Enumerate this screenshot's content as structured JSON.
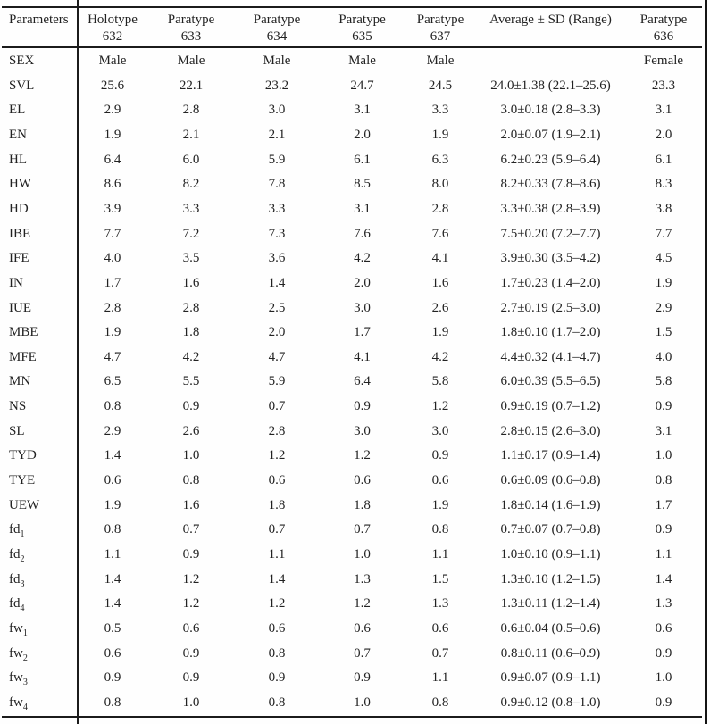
{
  "table": {
    "header": {
      "parameters_label": "Parameters",
      "columns": [
        {
          "line1": "Holotype",
          "line2": "632"
        },
        {
          "line1": "Paratype",
          "line2": "633"
        },
        {
          "line1": "Paratype",
          "line2": "634"
        },
        {
          "line1": "Paratype",
          "line2": "635"
        },
        {
          "line1": "Paratype",
          "line2": "637"
        },
        {
          "line1": "Average ± SD (Range)",
          "line2": ""
        },
        {
          "line1": "Paratype",
          "line2": "636"
        }
      ]
    },
    "rows": [
      {
        "param": "SEX",
        "sub": "",
        "values": [
          "Male",
          "Male",
          "Male",
          "Male",
          "Male",
          "",
          "Female"
        ]
      },
      {
        "param": "SVL",
        "sub": "",
        "values": [
          "25.6",
          "22.1",
          "23.2",
          "24.7",
          "24.5",
          "24.0±1.38 (22.1–25.6)",
          "23.3"
        ]
      },
      {
        "param": "EL",
        "sub": "",
        "values": [
          "2.9",
          "2.8",
          "3.0",
          "3.1",
          "3.3",
          "3.0±0.18 (2.8–3.3)",
          "3.1"
        ]
      },
      {
        "param": "EN",
        "sub": "",
        "values": [
          "1.9",
          "2.1",
          "2.1",
          "2.0",
          "1.9",
          "2.0±0.07 (1.9–2.1)",
          "2.0"
        ]
      },
      {
        "param": "HL",
        "sub": "",
        "values": [
          "6.4",
          "6.0",
          "5.9",
          "6.1",
          "6.3",
          "6.2±0.23 (5.9–6.4)",
          "6.1"
        ]
      },
      {
        "param": "HW",
        "sub": "",
        "values": [
          "8.6",
          "8.2",
          "7.8",
          "8.5",
          "8.0",
          "8.2±0.33 (7.8–8.6)",
          "8.3"
        ]
      },
      {
        "param": "HD",
        "sub": "",
        "values": [
          "3.9",
          "3.3",
          "3.3",
          "3.1",
          "2.8",
          "3.3±0.38 (2.8–3.9)",
          "3.8"
        ]
      },
      {
        "param": "IBE",
        "sub": "",
        "values": [
          "7.7",
          "7.2",
          "7.3",
          "7.6",
          "7.6",
          "7.5±0.20 (7.2–7.7)",
          "7.7"
        ]
      },
      {
        "param": "IFE",
        "sub": "",
        "values": [
          "4.0",
          "3.5",
          "3.6",
          "4.2",
          "4.1",
          "3.9±0.30 (3.5–4.2)",
          "4.5"
        ]
      },
      {
        "param": "IN",
        "sub": "",
        "values": [
          "1.7",
          "1.6",
          "1.4",
          "2.0",
          "1.6",
          "1.7±0.23 (1.4–2.0)",
          "1.9"
        ]
      },
      {
        "param": "IUE",
        "sub": "",
        "values": [
          "2.8",
          "2.8",
          "2.5",
          "3.0",
          "2.6",
          "2.7±0.19 (2.5–3.0)",
          "2.9"
        ]
      },
      {
        "param": "MBE",
        "sub": "",
        "values": [
          "1.9",
          "1.8",
          "2.0",
          "1.7",
          "1.9",
          "1.8±0.10 (1.7–2.0)",
          "1.5"
        ]
      },
      {
        "param": "MFE",
        "sub": "",
        "values": [
          "4.7",
          "4.2",
          "4.7",
          "4.1",
          "4.2",
          "4.4±0.32 (4.1–4.7)",
          "4.0"
        ]
      },
      {
        "param": "MN",
        "sub": "",
        "values": [
          "6.5",
          "5.5",
          "5.9",
          "6.4",
          "5.8",
          "6.0±0.39 (5.5–6.5)",
          "5.8"
        ]
      },
      {
        "param": "NS",
        "sub": "",
        "values": [
          "0.8",
          "0.9",
          "0.7",
          "0.9",
          "1.2",
          "0.9±0.19 (0.7–1.2)",
          "0.9"
        ]
      },
      {
        "param": "SL",
        "sub": "",
        "values": [
          "2.9",
          "2.6",
          "2.8",
          "3.0",
          "3.0",
          "2.8±0.15 (2.6–3.0)",
          "3.1"
        ]
      },
      {
        "param": "TYD",
        "sub": "",
        "values": [
          "1.4",
          "1.0",
          "1.2",
          "1.2",
          "0.9",
          "1.1±0.17 (0.9–1.4)",
          "1.0"
        ]
      },
      {
        "param": "TYE",
        "sub": "",
        "values": [
          "0.6",
          "0.8",
          "0.6",
          "0.6",
          "0.6",
          "0.6±0.09 (0.6–0.8)",
          "0.8"
        ]
      },
      {
        "param": "UEW",
        "sub": "",
        "values": [
          "1.9",
          "1.6",
          "1.8",
          "1.8",
          "1.9",
          "1.8±0.14 (1.6–1.9)",
          "1.7"
        ]
      },
      {
        "param": "fd",
        "sub": "1",
        "values": [
          "0.8",
          "0.7",
          "0.7",
          "0.7",
          "0.8",
          "0.7±0.07 (0.7–0.8)",
          "0.9"
        ]
      },
      {
        "param": "fd",
        "sub": "2",
        "values": [
          "1.1",
          "0.9",
          "1.1",
          "1.0",
          "1.1",
          "1.0±0.10 (0.9–1.1)",
          "1.1"
        ]
      },
      {
        "param": "fd",
        "sub": "3",
        "values": [
          "1.4",
          "1.2",
          "1.4",
          "1.3",
          "1.5",
          "1.3±0.10 (1.2–1.5)",
          "1.4"
        ]
      },
      {
        "param": "fd",
        "sub": "4",
        "values": [
          "1.4",
          "1.2",
          "1.2",
          "1.2",
          "1.3",
          "1.3±0.11 (1.2–1.4)",
          "1.3"
        ]
      },
      {
        "param": "fw",
        "sub": "1",
        "values": [
          "0.5",
          "0.6",
          "0.6",
          "0.6",
          "0.6",
          "0.6±0.04 (0.5–0.6)",
          "0.6"
        ]
      },
      {
        "param": "fw",
        "sub": "2",
        "values": [
          "0.6",
          "0.9",
          "0.8",
          "0.7",
          "0.7",
          "0.8±0.11 (0.6–0.9)",
          "0.9"
        ]
      },
      {
        "param": "fw",
        "sub": "3",
        "values": [
          "0.9",
          "0.9",
          "0.9",
          "0.9",
          "1.1",
          "0.9±0.07 (0.9–1.1)",
          "1.0"
        ]
      },
      {
        "param": "fw",
        "sub": "4",
        "values": [
          "0.8",
          "1.0",
          "0.8",
          "1.0",
          "0.8",
          "0.9±0.12 (0.8–1.0)",
          "0.9"
        ]
      }
    ]
  }
}
